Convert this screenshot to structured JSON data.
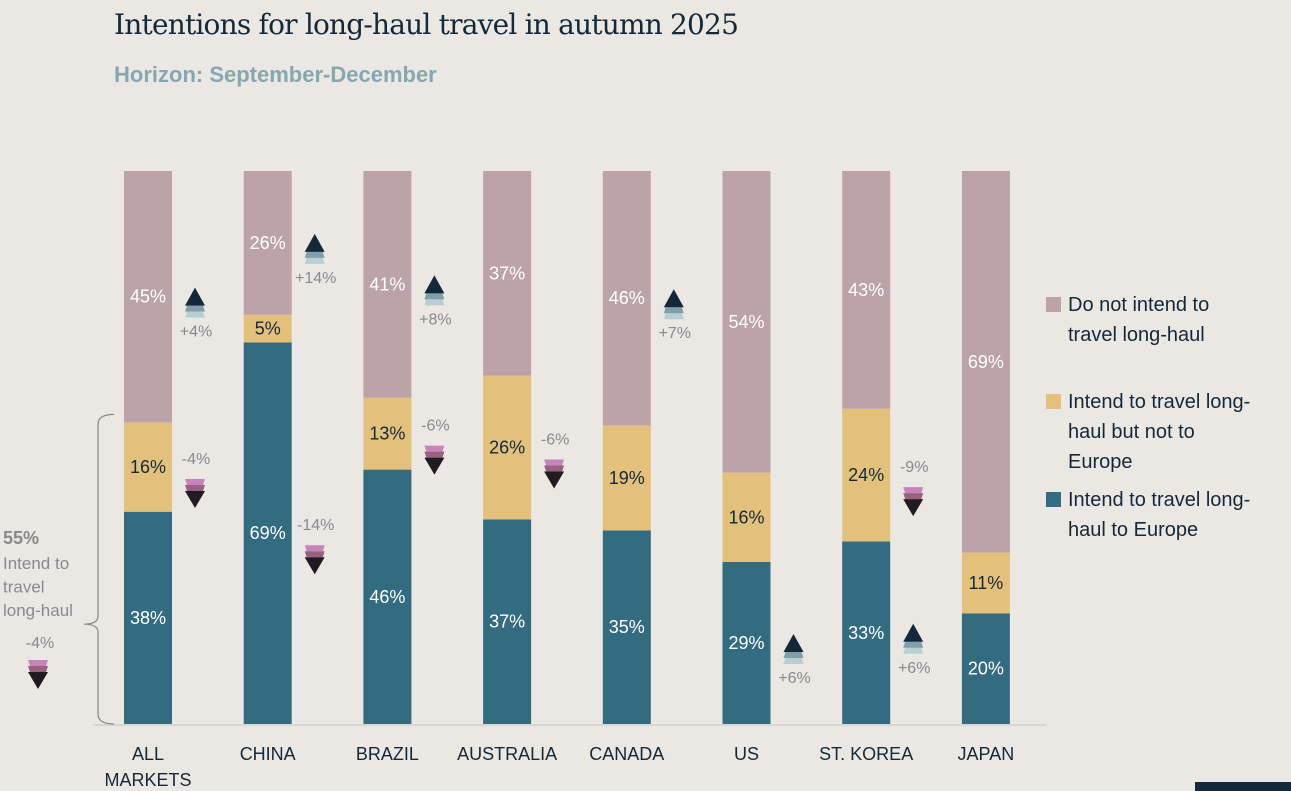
{
  "chart_data": {
    "type": "bar",
    "stacked": true,
    "title": "Intentions for long-haul travel in autumn 2025",
    "subtitle": "Horizon: September-December",
    "categories": [
      "ALL MARKETS",
      "CHINA",
      "BRAZIL",
      "AUSTRALIA",
      "CANADA",
      "US",
      "ST. KOREA",
      "JAPAN"
    ],
    "ylim": [
      0,
      100
    ],
    "series": [
      {
        "name": "Intend to travel long-haul to Europe",
        "color": "#336b80",
        "label_color": "#ffffff",
        "values": [
          38,
          69,
          46,
          37,
          35,
          29,
          33,
          20
        ],
        "labels": [
          "38%",
          "69%",
          "46%",
          "37%",
          "35%",
          "29%",
          "33%",
          "20%"
        ]
      },
      {
        "name": "Intend to travel long-haul but not to Europe",
        "color": "#e4c07d",
        "label_color": "#13293a",
        "values": [
          16,
          5,
          13,
          26,
          19,
          16,
          24,
          11
        ],
        "labels": [
          "16%",
          "5%",
          "13%",
          "26%",
          "19%",
          "16%",
          "24%",
          "11%"
        ]
      },
      {
        "name": "Do not intend to travel long-haul",
        "color": "#bca3a8",
        "label_color": "#ffffff",
        "values": [
          45,
          26,
          41,
          37,
          46,
          54,
          43,
          69
        ],
        "labels": [
          "45%",
          "26%",
          "41%",
          "37%",
          "46%",
          "54%",
          "43%",
          "69%"
        ]
      }
    ],
    "changes": [
      {
        "category": "ALL MARKETS",
        "segment": "Do not intend to travel long-haul",
        "value": 4,
        "label": "+4%",
        "direction": "up"
      },
      {
        "category": "ALL MARKETS",
        "segment": "Intend to travel long-haul but not to Europe",
        "value": -4,
        "label": "-4%",
        "direction": "down"
      },
      {
        "category": "CHINA",
        "segment": "Do not intend to travel long-haul",
        "value": 14,
        "label": "+14%",
        "direction": "up"
      },
      {
        "category": "CHINA",
        "segment": "Intend to travel long-haul to Europe",
        "value": -14,
        "label": "-14%",
        "direction": "down"
      },
      {
        "category": "BRAZIL",
        "segment": "Do not intend to travel long-haul",
        "value": 8,
        "label": "+8%",
        "direction": "up"
      },
      {
        "category": "BRAZIL",
        "segment": "Intend to travel long-haul but not to Europe",
        "value": -6,
        "label": "-6%",
        "direction": "down"
      },
      {
        "category": "AUSTRALIA",
        "segment": "Intend to travel long-haul but not to Europe",
        "value": -6,
        "label": "-6%",
        "direction": "down"
      },
      {
        "category": "CANADA",
        "segment": "Do not intend to travel long-haul",
        "value": 7,
        "label": "+7%",
        "direction": "up"
      },
      {
        "category": "US",
        "segment": "Intend to travel long-haul to Europe",
        "value": 6,
        "label": "+6%",
        "direction": "up"
      },
      {
        "category": "ST. KOREA",
        "segment": "Intend to travel long-haul but not to Europe",
        "value": -9,
        "label": "-9%",
        "direction": "down"
      },
      {
        "category": "ST. KOREA",
        "segment": "Intend to travel long-haul to Europe",
        "value": 6,
        "label": "+6%",
        "direction": "up"
      }
    ],
    "bracket_annotation": {
      "value_label": "55%",
      "text_lines": [
        "Intend to",
        "travel",
        "long-haul"
      ],
      "change_label": "-4%",
      "direction": "down"
    },
    "legend": {
      "placement": "right",
      "items": [
        {
          "label": "Do not intend to travel long-haul",
          "lines": [
            "Do not intend to",
            "travel long-haul"
          ],
          "color": "#bca3a8"
        },
        {
          "label": "Intend to travel long-haul but not to Europe",
          "lines": [
            "Intend to travel long-",
            "haul but not to",
            "Europe"
          ],
          "color": "#e4c07d"
        },
        {
          "label": "Intend to travel long-haul to Europe",
          "lines": [
            "Intend to travel long-",
            "haul to Europe"
          ],
          "color": "#336b80"
        }
      ]
    },
    "category_label_lines": [
      [
        "ALL",
        "MARKETS"
      ],
      [
        "CHINA"
      ],
      [
        "BRAZIL"
      ],
      [
        "AUSTRALIA"
      ],
      [
        "CANADA"
      ],
      [
        "US"
      ],
      [
        "ST. KOREA"
      ],
      [
        "JAPAN"
      ]
    ],
    "colors": {
      "up_arrow": [
        "#13293a",
        "#7fa0ab",
        "#b8cfd2"
      ],
      "down_arrow": [
        "#c883bd",
        "#98617f",
        "#221a22"
      ],
      "axis": "#d9d5d1",
      "change_text": "#8a8a8a"
    }
  }
}
